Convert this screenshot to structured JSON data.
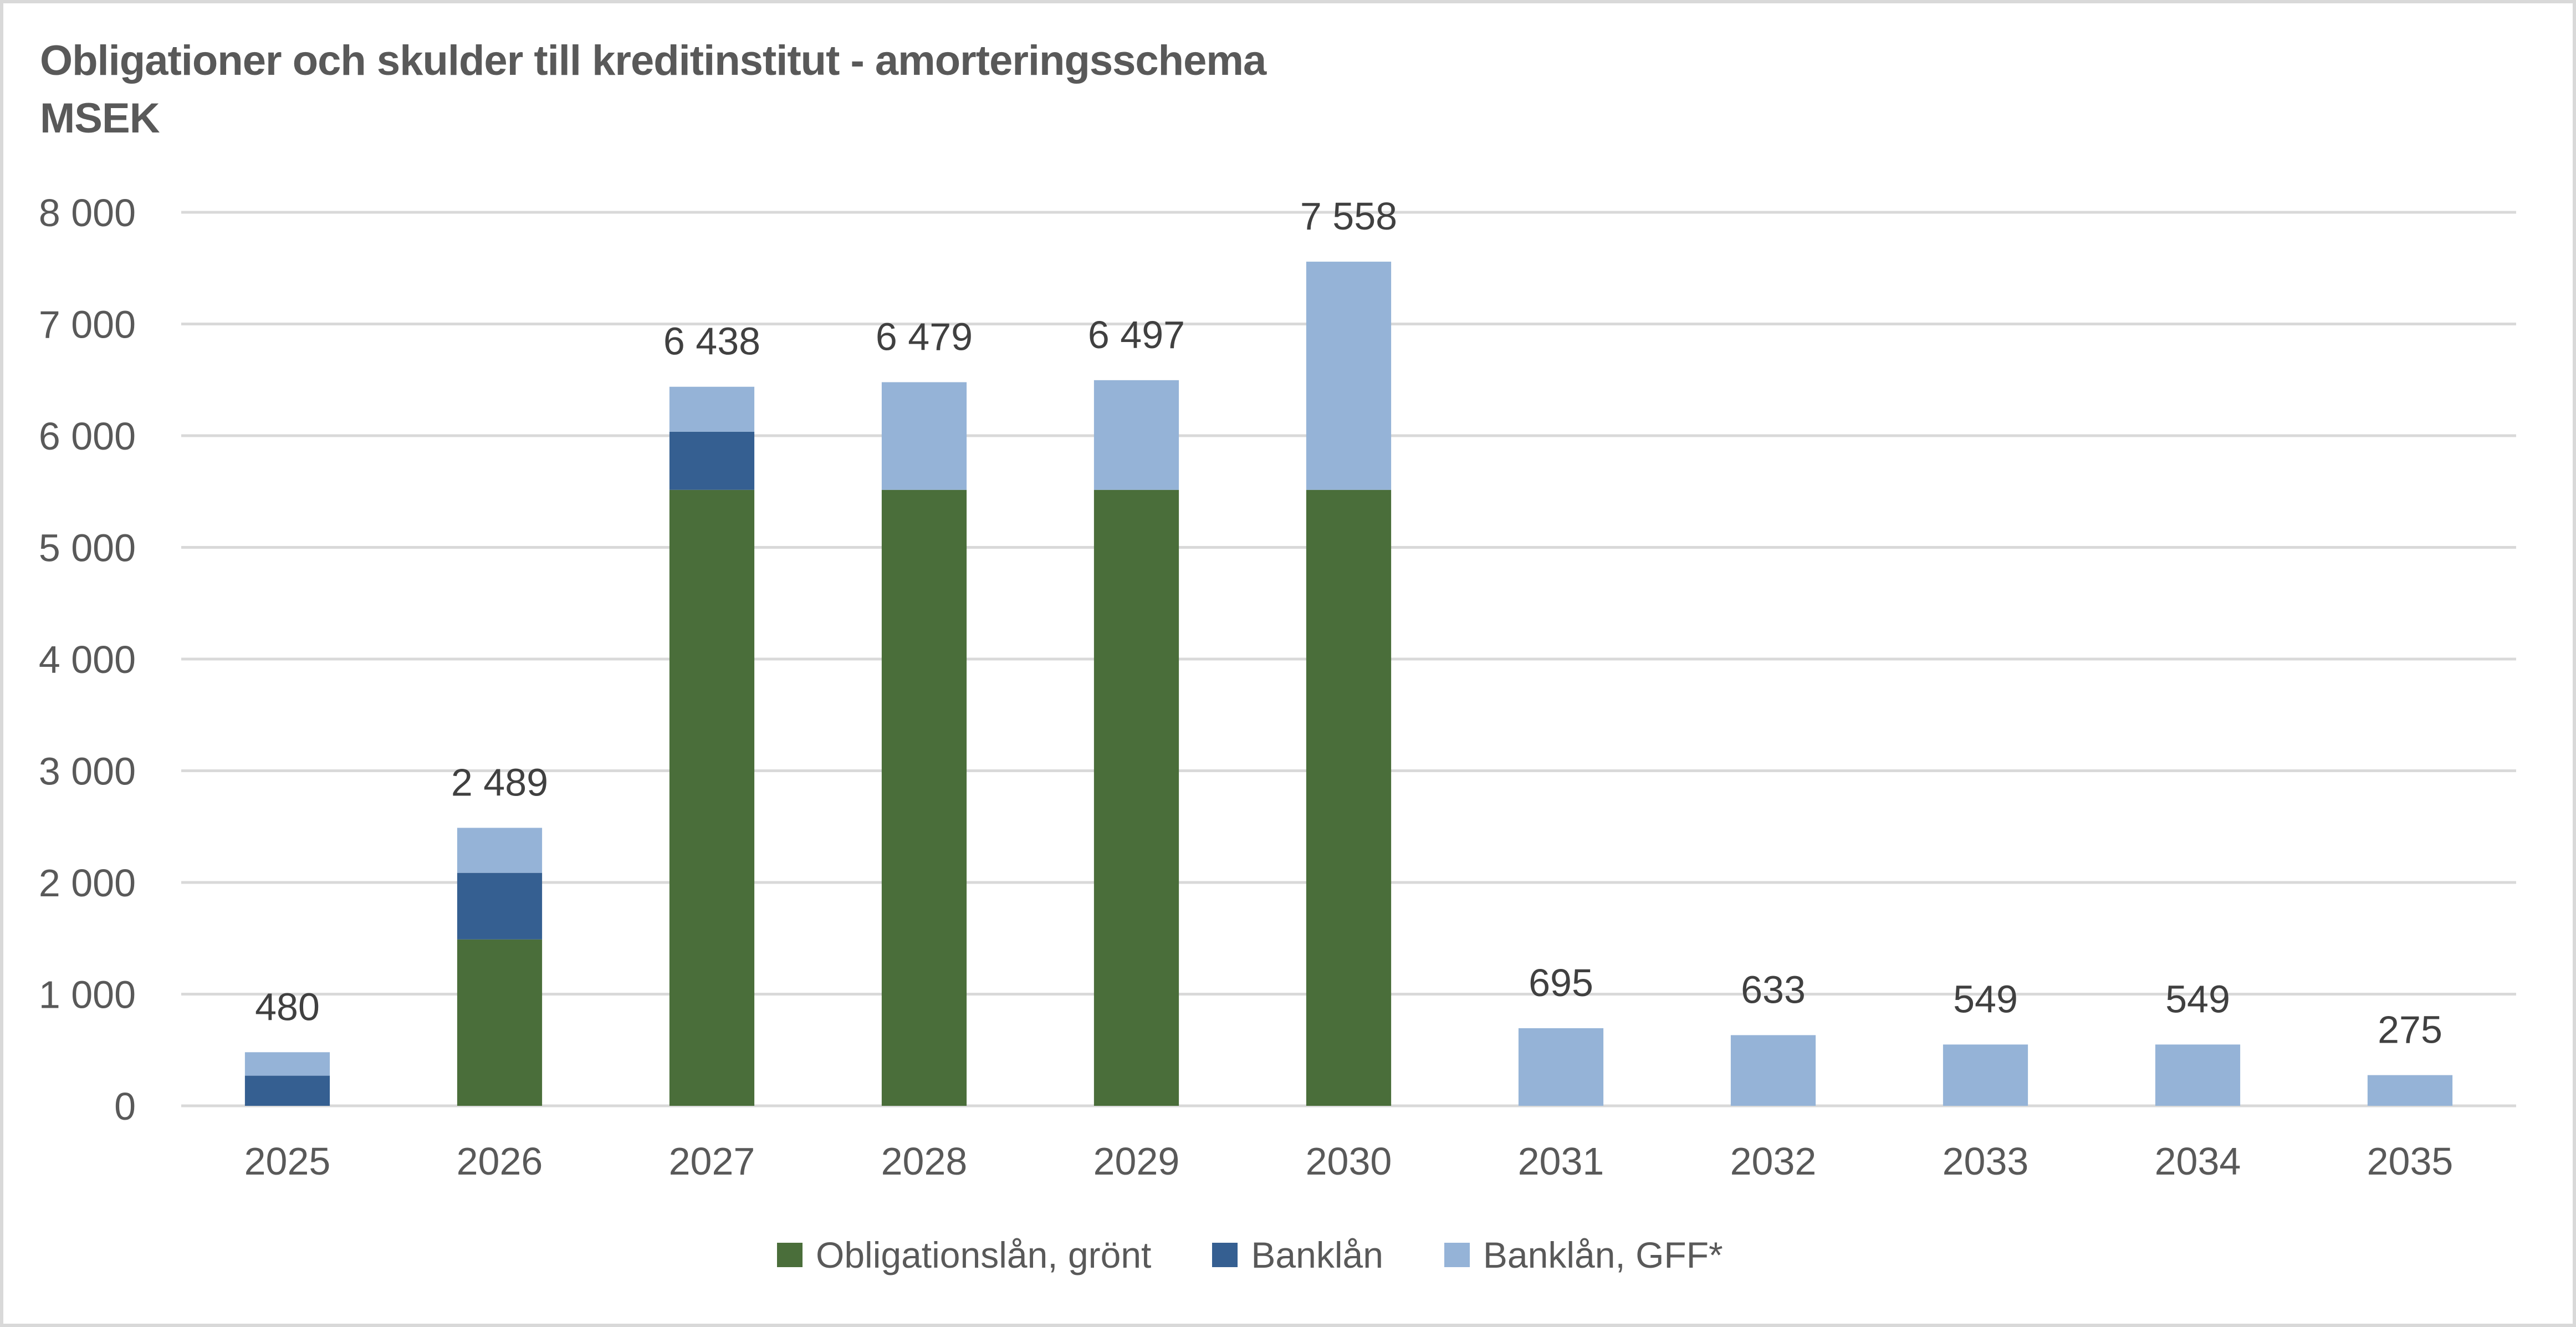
{
  "chart_data": {
    "type": "bar",
    "stacked": true,
    "title": "Obligationer och skulder till kreditinstitut - amorteringsschema",
    "subtitle": "MSEK",
    "xlabel": "",
    "ylabel": "",
    "ylim": [
      0,
      8000
    ],
    "yticks": [
      0,
      1000,
      2000,
      3000,
      4000,
      5000,
      6000,
      7000,
      8000
    ],
    "ytick_labels": [
      "0",
      "1 000",
      "2 000",
      "3 000",
      "4 000",
      "5 000",
      "6 000",
      "7 000",
      "8 000"
    ],
    "grid": true,
    "legend_position": "bottom",
    "categories": [
      "2025",
      "2026",
      "2027",
      "2028",
      "2029",
      "2030",
      "2031",
      "2032",
      "2033",
      "2034",
      "2035"
    ],
    "series": [
      {
        "name": "Obligationslån, grönt",
        "color": "#4a6e3a",
        "values": [
          0,
          1490,
          5515,
          5515,
          5515,
          5515,
          0,
          0,
          0,
          0,
          0
        ]
      },
      {
        "name": "Banklån",
        "color": "#355f91",
        "values": [
          270,
          596,
          520,
          0,
          0,
          0,
          0,
          0,
          0,
          0,
          0
        ]
      },
      {
        "name": "Banklån, GFF*",
        "color": "#95b3d7",
        "values": [
          210,
          403,
          403,
          964,
          982,
          2043,
          695,
          633,
          549,
          549,
          275
        ]
      }
    ],
    "totals": [
      480,
      2489,
      6438,
      6479,
      6497,
      7558,
      695,
      633,
      549,
      549,
      275
    ],
    "total_labels": [
      "480",
      "2 489",
      "6 438",
      "6 479",
      "6 497",
      "7 558",
      "695",
      "633",
      "549",
      "549",
      "275"
    ]
  },
  "colors": {
    "gridline": "#d9d9d9",
    "axis_text": "#595959",
    "data_label": "#404040",
    "border": "#d9d9d9"
  }
}
